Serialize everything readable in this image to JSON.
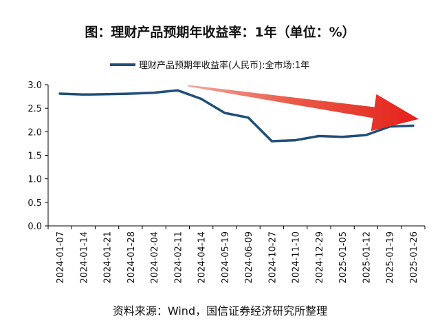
{
  "chart_data": {
    "type": "line",
    "title": "图：理财产品预期年收益率：1年（单位：%）",
    "source": "资料来源：Wind，国信证券经济研究所整理",
    "categories": [
      "2024-01-07",
      "2024-01-14",
      "2024-01-21",
      "2024-01-28",
      "2024-02-04",
      "2024-02-11",
      "2024-04-14",
      "2024-05-19",
      "2024-06-09",
      "2024-10-27",
      "2024-11-10",
      "2024-12-29",
      "2025-01-05",
      "2025-01-12",
      "2025-01-19",
      "2025-01-26"
    ],
    "series": [
      {
        "name": "理财产品预期年收益率(人民币):全市场:1年",
        "color": "#1f4e79",
        "values": [
          2.81,
          2.79,
          2.8,
          2.81,
          2.83,
          2.88,
          2.7,
          2.4,
          2.3,
          1.8,
          1.82,
          1.91,
          1.89,
          1.93,
          2.11,
          2.13
        ]
      }
    ],
    "ylim": [
      0.0,
      3.0
    ],
    "yticks": [
      "0.0",
      "0.5",
      "1.0",
      "1.5",
      "2.0",
      "2.5",
      "3.0"
    ],
    "xlabel": "",
    "ylabel": "",
    "grid": false,
    "legend": "top",
    "annotation": {
      "type": "trend-arrow",
      "color": "#e8281e",
      "from_category": "2024-02-11",
      "to_category": "2025-01-26",
      "from_value": 2.98,
      "to_value": 2.27
    }
  }
}
